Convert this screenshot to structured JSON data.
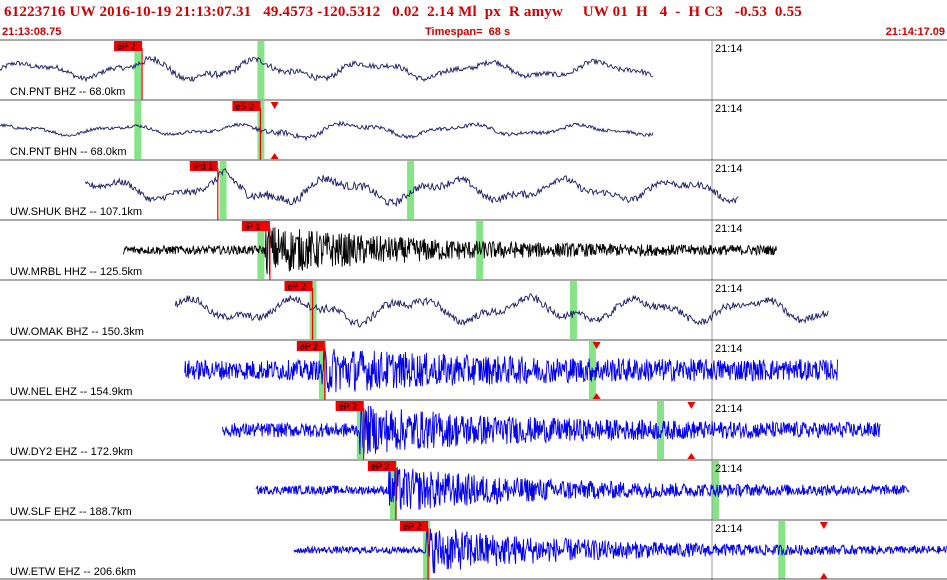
{
  "header": {
    "title": "61223716 UW 2016-10-19 21:13:07.31   49.4573 -120.5312   0.02  2.14 Ml  px  R amyw     UW 01  H   4  -  H C3   -0.53  0.55",
    "start_time": "21:13:08.75",
    "timespan": "Timespan=  68 s",
    "end_time": "21:14:17.09"
  },
  "colors": {
    "header_text": "#d00000",
    "pick_flag": "#ee0000",
    "coda_marker": "#22cc22",
    "dark_trace": "#1a1a66",
    "black_trace": "#000000",
    "blue_trace": "#0000ee",
    "grid": "#888888"
  },
  "panels": [
    {
      "label": "CN.PNT BHZ -- 68.0km",
      "minute_label": "21:14",
      "pick": "eP 2",
      "color": "dark",
      "start": 0.0,
      "end": 0.69,
      "onset": 0.14,
      "amp": 0.55,
      "noise": 0.35,
      "slow": true,
      "p_line": 0.15,
      "green": [
        0.145,
        0.275
      ],
      "has_triangle": false
    },
    {
      "label": "CN.PNT BHN -- 68.0km",
      "minute_label": "21:14",
      "pick": "eS 2",
      "color": "dark",
      "start": 0.0,
      "end": 0.69,
      "onset": 0.27,
      "amp": 0.45,
      "noise": 0.22,
      "slow": true,
      "p_line": 0.275,
      "green": [
        0.145,
        0.275
      ],
      "has_triangle": true,
      "triangle_at": 0.29
    },
    {
      "label": "UW.SHUK BHZ -- 107.1km",
      "minute_label": "21:14",
      "pick": "iPd 1",
      "color": "dark",
      "start": 0.09,
      "end": 0.78,
      "onset": 0.23,
      "amp": 0.7,
      "noise": 0.45,
      "slow": true,
      "p_line": 0.23,
      "green": [
        0.235,
        0.433
      ],
      "has_triangle": false
    },
    {
      "label": "UW.MRBL HHZ -- 125.5km",
      "minute_label": "21:14",
      "pick": "iP 1",
      "color": "black",
      "start": 0.13,
      "end": 0.82,
      "onset": 0.28,
      "amp": 0.9,
      "noise": 0.15,
      "slow": false,
      "p_line": 0.285,
      "green": [
        0.275,
        0.506
      ],
      "has_triangle": false
    },
    {
      "label": "UW.OMAK BHZ -- 150.3km",
      "minute_label": "21:14",
      "pick": "eP 2",
      "color": "dark",
      "start": 0.185,
      "end": 0.875,
      "onset": 0.33,
      "amp": 0.6,
      "noise": 0.5,
      "slow": true,
      "p_line": 0.33,
      "green": [
        0.33,
        0.605
      ],
      "has_triangle": false
    },
    {
      "label": "UW.NEL EHZ -- 154.9km",
      "minute_label": "21:14",
      "pick": "eP 2",
      "color": "blue",
      "start": 0.195,
      "end": 0.885,
      "onset": 0.34,
      "amp": 0.85,
      "noise": 0.35,
      "slow": false,
      "p_line": 0.343,
      "green": [
        0.34,
        0.625
      ],
      "has_triangle": true,
      "triangle_at": 0.63
    },
    {
      "label": "UW.DY2 EHZ -- 172.9km",
      "minute_label": "21:14",
      "pick": "eP 2",
      "color": "blue",
      "start": 0.235,
      "end": 0.93,
      "onset": 0.38,
      "amp": 0.9,
      "noise": 0.25,
      "slow": false,
      "p_line": 0.384,
      "green": [
        0.38,
        0.697
      ],
      "has_triangle": true,
      "triangle_at": 0.73
    },
    {
      "label": "UW.SLF EHZ -- 188.7km",
      "minute_label": "21:14",
      "pick": "eP 2",
      "color": "blue",
      "start": 0.27,
      "end": 0.96,
      "onset": 0.41,
      "amp": 0.85,
      "noise": 0.15,
      "slow": false,
      "p_line": 0.418,
      "green": [
        0.415,
        0.755
      ],
      "has_triangle": false
    },
    {
      "label": "UW.ETW EHZ -- 206.6km",
      "minute_label": "21:14",
      "pick": "eP 2",
      "color": "blue",
      "start": 0.31,
      "end": 1.0,
      "onset": 0.45,
      "amp": 0.85,
      "noise": 0.12,
      "slow": false,
      "p_line": 0.452,
      "green": [
        0.45,
        0.825
      ],
      "has_triangle": true,
      "triangle_at": 0.87
    }
  ]
}
